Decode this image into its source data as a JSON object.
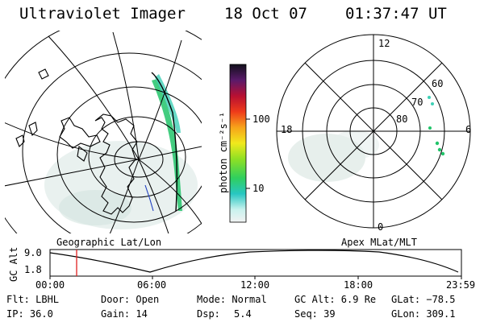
{
  "header": {
    "instrument": "Ultraviolet Imager",
    "date": "18 Oct 07",
    "time": "01:37:47 UT"
  },
  "colorbar": {
    "unit_label": "photon cm⁻²s⁻¹",
    "ticks": [
      "100",
      "10"
    ]
  },
  "polar_plot": {
    "mlt_labels": [
      "12",
      "18",
      "6",
      "0"
    ],
    "lat_labels": [
      "60",
      "70",
      "80"
    ]
  },
  "projection_labels": {
    "left": "Geographic Lat/Lon",
    "right": "Apex MLat/MLT"
  },
  "timeline": {
    "ylabel": "GC Alt",
    "yticks": [
      "9.0",
      "1.8"
    ],
    "xticks": [
      "00:00",
      "06:00",
      "12:00",
      "18:00",
      "23:59"
    ],
    "current_time": "01:37"
  },
  "info": {
    "flt": "Flt: LBHL",
    "door": "Door: Open",
    "mode": "Mode: Normal",
    "gc_alt": "GC Alt: 6.9 Re",
    "glat": "GLat: −78.5",
    "ip": "IP: 36.0",
    "gain": "Gain: 14",
    "dsp_label": "Dsp:",
    "dsp_value": "5.4",
    "seq": "Seq: 39",
    "glon": "GLon: 309.1"
  },
  "colors": {
    "auroral_emission": "#22c46a",
    "cursor_line": "#e02020",
    "coastline": "#000000"
  }
}
